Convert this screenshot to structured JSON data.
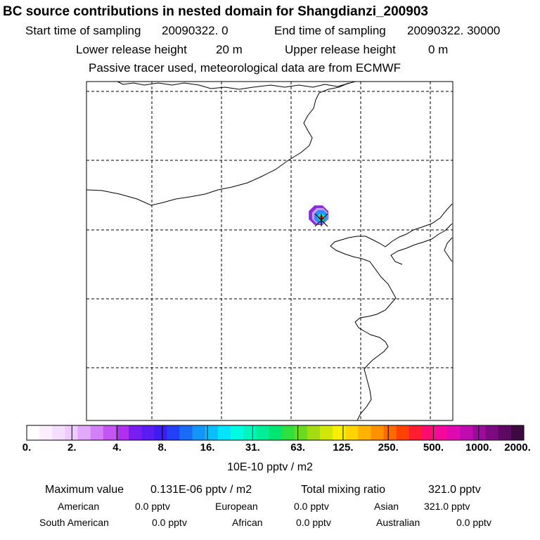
{
  "header": {
    "title": "BC  source contributions in nested domain for Shangdianzi_200903",
    "start_label": "Start time of sampling",
    "start_value": "20090322.     0",
    "end_label": "End time of sampling",
    "end_value": "20090322. 30000",
    "lower_label": "Lower release height",
    "lower_value": "20 m",
    "upper_label": "Upper release height",
    "upper_value": "0 m",
    "tracer_note": "Passive tracer used, meteorological data are from ECMWF"
  },
  "colorbar": {
    "ticks": [
      "0.",
      "2.",
      "4.",
      "8.",
      "16.",
      "31.",
      "63.",
      "125.",
      "250.",
      "500.",
      "1000.",
      "2000."
    ],
    "unit": "10E-10 pptv / m2",
    "colors": [
      "#ffffff",
      "#fbeefe",
      "#f5ddfd",
      "#eecbfc",
      "#e2a9fa",
      "#d37ff6",
      "#c356f3",
      "#b12fef",
      "#7a1df0",
      "#5b1cf2",
      "#3e1cf4",
      "#2440f6",
      "#1a6cf8",
      "#1296f9",
      "#0abefb",
      "#04e4fc",
      "#00fbe5",
      "#00f5c0",
      "#00ee98",
      "#00e670",
      "#2fe040",
      "#69da1d",
      "#a4dc12",
      "#d2e60a",
      "#f8ef02",
      "#ffd400",
      "#ffb300",
      "#ff9100",
      "#ff6a00",
      "#ff4200",
      "#ff1e30",
      "#ff0a70",
      "#f5089a",
      "#de0ab0",
      "#c00bb0",
      "#9c0b9c",
      "#7c0a80",
      "#5e0a62",
      "#3e0942"
    ]
  },
  "stats": {
    "max_label": "Maximum value",
    "max_value": "0.131E-06 pptv / m2",
    "total_label": "Total mixing ratio",
    "total_value": "321.0 pptv"
  },
  "regions": [
    {
      "name": "American",
      "value": "0.0 pptv"
    },
    {
      "name": "European",
      "value": "0.0 pptv"
    },
    {
      "name": "Asian",
      "value": "321.0 pptv"
    },
    {
      "name": "South American",
      "value": "0.0 pptv"
    },
    {
      "name": "African",
      "value": "0.0 pptv"
    },
    {
      "name": "Australian",
      "value": "0.0 pptv"
    }
  ],
  "map": {
    "frame_color": "#000000",
    "grid_color": "#000000",
    "coast_color": "#000000",
    "plume_colors": [
      "#8a2be2",
      "#c3a0f5",
      "#1e90ff",
      "#00e5c8",
      "#ff2020"
    ]
  }
}
